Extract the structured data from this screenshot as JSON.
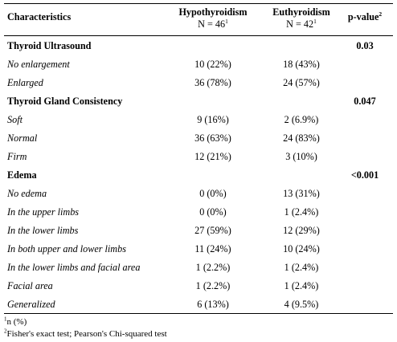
{
  "header": {
    "characteristics": "Characteristics",
    "hypo_title": "Hypothyroidism",
    "hypo_n": "N = 46",
    "hypo_n_sup": "1",
    "eu_title": "Euthyroidism",
    "eu_n": "N = 42",
    "eu_n_sup": "1",
    "pvalue": "p-value",
    "pvalue_sup": "2"
  },
  "rows": [
    {
      "label": "Thyroid Ultrasound",
      "section": true,
      "p": "0.03"
    },
    {
      "label": "No enlargement",
      "hypo": "10 (22%)",
      "eu": "18 (43%)"
    },
    {
      "label": "Enlarged",
      "hypo": "36 (78%)",
      "eu": "24 (57%)"
    },
    {
      "label": "Thyroid Gland Consistency",
      "section": true,
      "p": "0.047"
    },
    {
      "label": "Soft",
      "hypo": "9 (16%)",
      "eu": "2 (6.9%)"
    },
    {
      "label": "Normal",
      "hypo": "36 (63%)",
      "eu": "24 (83%)"
    },
    {
      "label": "Firm",
      "hypo": "12 (21%)",
      "eu": "3 (10%)"
    },
    {
      "label": "Edema",
      "section": true,
      "p": "<0.001"
    },
    {
      "label": "No edema",
      "hypo": "0 (0%)",
      "eu": "13 (31%)"
    },
    {
      "label": "In the upper limbs",
      "hypo": "0 (0%)",
      "eu": "1 (2.4%)"
    },
    {
      "label": "In the lower limbs",
      "hypo": "27 (59%)",
      "eu": "12 (29%)"
    },
    {
      "label": "In both upper and lower  limbs",
      "hypo": "11 (24%)",
      "eu": "10 (24%)"
    },
    {
      "label": "In the lower limbs and facial area",
      "hypo": "1 (2.2%)",
      "eu": "1 (2.4%)"
    },
    {
      "label": "Facial area",
      "hypo": "1 (2.2%)",
      "eu": "1 (2.4%)"
    },
    {
      "label": "Generalized",
      "hypo": "6 (13%)",
      "eu": "4 (9.5%)"
    }
  ],
  "footnotes": [
    {
      "sup": "1",
      "text": "n (%)"
    },
    {
      "sup": "2",
      "text": "Fisher's exact test; Pearson's Chi-squared test"
    }
  ]
}
